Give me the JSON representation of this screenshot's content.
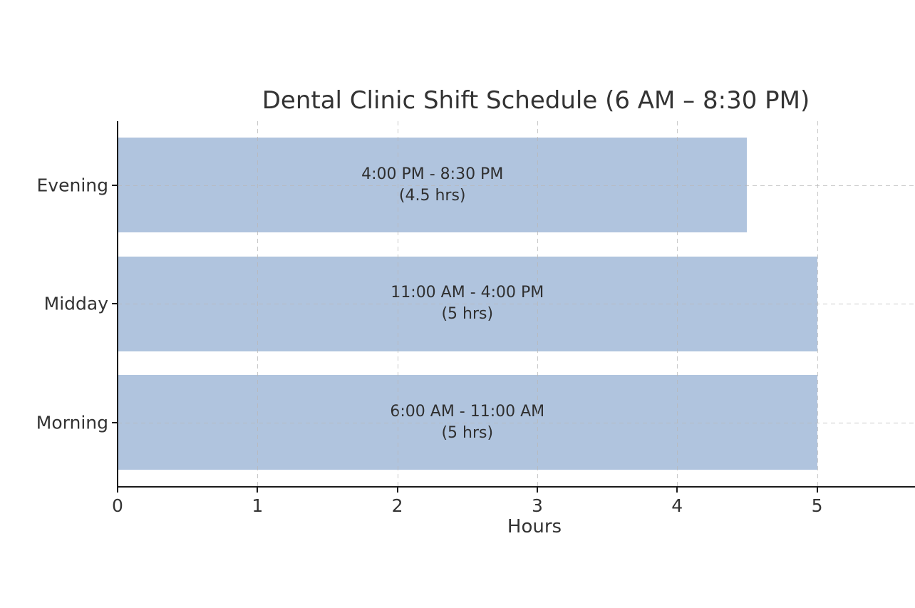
{
  "chart_data": {
    "type": "bar",
    "orientation": "horizontal",
    "title": "Dental Clinic Shift Schedule (6 AM – 8:30 PM)",
    "xlabel": "Hours",
    "categories": [
      "Evening",
      "Midday",
      "Morning"
    ],
    "values": [
      4.5,
      5,
      5
    ],
    "bar_labels": [
      [
        "4:00 PM - 8:30 PM",
        "(4.5 hrs)"
      ],
      [
        "11:00 AM - 4:00 PM",
        "(5 hrs)"
      ],
      [
        "6:00 AM - 11:00 AM",
        "(5 hrs)"
      ]
    ],
    "shifts": [
      {
        "name": "Evening",
        "start": "4:00 PM",
        "end": "8:30 PM",
        "hours": 4.5
      },
      {
        "name": "Midday",
        "start": "11:00 AM",
        "end": "4:00 PM",
        "hours": 5
      },
      {
        "name": "Morning",
        "start": "6:00 AM",
        "end": "11:00 AM",
        "hours": 5
      }
    ],
    "xticks": [
      0,
      1,
      2,
      3,
      4,
      5
    ],
    "xlim": [
      0,
      5.7
    ],
    "grid": true,
    "grid_style": "dashed",
    "legend": "none",
    "colors": {
      "bar": "#b0c4de",
      "text": "#333333",
      "axis": "#1a1a1a",
      "grid": "#b8b8b8",
      "background": "#ffffff"
    }
  }
}
